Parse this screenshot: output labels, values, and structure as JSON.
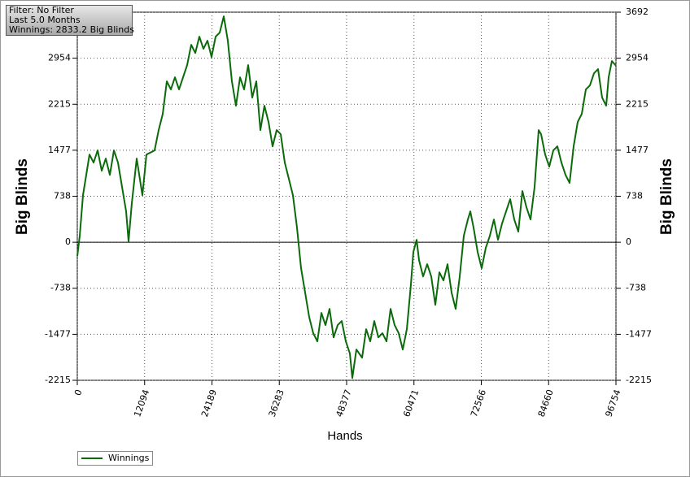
{
  "chart_data": {
    "type": "line",
    "annotations": [
      "Filter: No Filter",
      "Last 5.0 Months",
      "Winnings: 2833.2 Big Blinds"
    ],
    "xlabel": "Hands",
    "ylabel": "Big Blinds",
    "xlim": [
      0,
      96754
    ],
    "xticks": [
      0,
      12094,
      24189,
      36283,
      48377,
      60471,
      72566,
      84660,
      96754
    ],
    "ylim": [
      -2215,
      3692
    ],
    "yticks": [
      -2215,
      -1477,
      -738,
      0,
      738,
      1477,
      2215,
      2954,
      3692
    ],
    "grid": true,
    "legend": "bottom-left",
    "x": [
      0,
      438,
      1023,
      2192,
      2923,
      3654,
      4385,
      5116,
      5846,
      6577,
      7308,
      8039,
      8770,
      9208,
      9793,
      10670,
      11693,
      12424,
      13885,
      14616,
      15347,
      16078,
      16808,
      17539,
      18270,
      19732,
      20462,
      21193,
      21924,
      22655,
      23386,
      24116,
      24847,
      25578,
      26309,
      27040,
      27770,
      28501,
      29232,
      29963,
      30694,
      31424,
      32155,
      32886,
      33617,
      34348,
      35078,
      35809,
      36540,
      37271,
      38002,
      38732,
      39463,
      40194,
      40925,
      41656,
      42386,
      43117,
      43848,
      44579,
      45310,
      46040,
      46771,
      47502,
      48233,
      48964,
      49402,
      50133,
      51156,
      51887,
      52618,
      53348,
      54079,
      54810,
      55541,
      56272,
      57002,
      57733,
      58464,
      59195,
      59926,
      60364,
      60949,
      61387,
      62118,
      62849,
      63580,
      64310,
      65041,
      65772,
      66503,
      67234,
      67964,
      68695,
      69426,
      70157,
      70595,
      71180,
      71911,
      72642,
      73373,
      74104,
      74834,
      75565,
      76296,
      77027,
      77758,
      78488,
      79219,
      79950,
      80681,
      81412,
      82142,
      82873,
      83312,
      84043,
      84774,
      85504,
      86235,
      86966,
      87697,
      88428,
      89158,
      89889,
      90620,
      91351,
      92082,
      92812,
      93543,
      94274,
      95005,
      95444,
      96028,
      96754
    ],
    "series": [
      {
        "name": "Winnings",
        "color": "#0b6b0b",
        "values": [
          -222,
          104,
          756,
          1408,
          1278,
          1474,
          1148,
          1343,
          1082,
          1474,
          1278,
          887,
          496,
          13,
          626,
          1343,
          756,
          1408,
          1474,
          1800,
          2060,
          2582,
          2452,
          2647,
          2452,
          2843,
          3169,
          3038,
          3299,
          3104,
          3234,
          2973,
          3299,
          3364,
          3625,
          3234,
          2582,
          2191,
          2647,
          2452,
          2843,
          2321,
          2582,
          1800,
          2191,
          1930,
          1539,
          1800,
          1734,
          1278,
          1017,
          756,
          235,
          -417,
          -808,
          -1200,
          -1460,
          -1591,
          -1134,
          -1330,
          -1069,
          -1526,
          -1330,
          -1265,
          -1591,
          -1786,
          -2178,
          -1721,
          -1852,
          -1395,
          -1591,
          -1265,
          -1526,
          -1460,
          -1591,
          -1069,
          -1330,
          -1460,
          -1721,
          -1395,
          -678,
          -156,
          39,
          -287,
          -548,
          -352,
          -548,
          -1004,
          -482,
          -613,
          -352,
          -808,
          -1069,
          -548,
          104,
          365,
          496,
          235,
          -156,
          -417,
          -91,
          104,
          365,
          39,
          300,
          496,
          691,
          365,
          170,
          822,
          561,
          365,
          887,
          1800,
          1734,
          1408,
          1213,
          1474,
          1539,
          1278,
          1082,
          952,
          1539,
          1930,
          2060,
          2452,
          2517,
          2712,
          2778,
          2321,
          2191,
          2647,
          2908,
          2833
        ]
      }
    ]
  }
}
